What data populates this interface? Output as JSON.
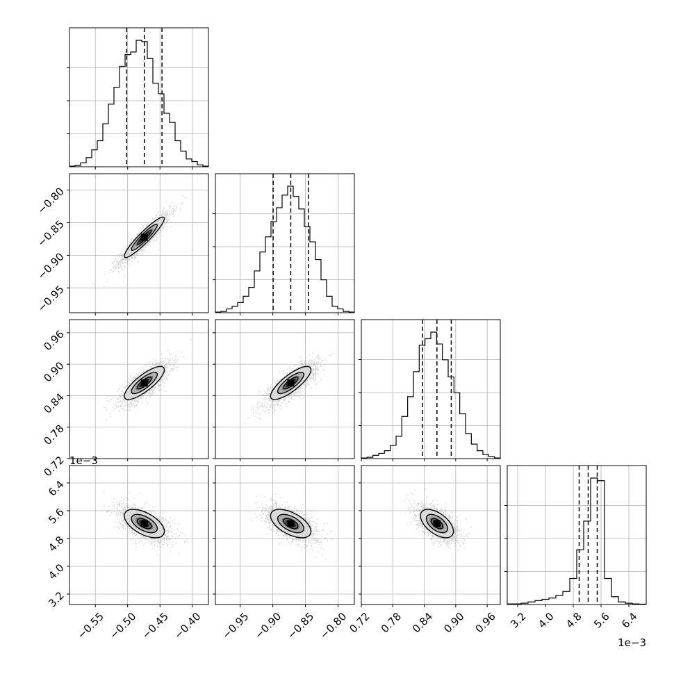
{
  "chart_data": {
    "type": "corner",
    "grid": true,
    "parameters": [
      {
        "range": [
          -0.59,
          -0.375
        ],
        "ticks": [
          -0.55,
          -0.5,
          -0.45,
          -0.4
        ],
        "tick_labels": [
          "−0.55",
          "−0.50",
          "−0.45",
          "−0.40"
        ],
        "offset_label": "",
        "quantiles": [
          -0.5015,
          -0.4742,
          -0.4469
        ],
        "hist": [
          0.005,
          0.01,
          0.03,
          0.07,
          0.13,
          0.2,
          0.33,
          0.48,
          0.61,
          0.77,
          0.86,
          0.88,
          0.97,
          0.96,
          0.83,
          0.64,
          0.56,
          0.41,
          0.34,
          0.2,
          0.12,
          0.06,
          0.04,
          0.015,
          0.005
        ]
      },
      {
        "range": [
          -0.988,
          -0.775
        ],
        "ticks": [
          -0.95,
          -0.9,
          -0.85,
          -0.8
        ],
        "tick_labels": [
          "−0.95",
          "−0.90",
          "−0.85",
          "−0.80"
        ],
        "offset_label": "",
        "quantiles": [
          -0.8995,
          -0.8725,
          -0.8455
        ],
        "hist": [
          0.005,
          0.01,
          0.03,
          0.05,
          0.08,
          0.13,
          0.2,
          0.33,
          0.48,
          0.6,
          0.72,
          0.83,
          0.93,
          1.0,
          0.92,
          0.82,
          0.68,
          0.56,
          0.42,
          0.26,
          0.13,
          0.05,
          0.03,
          0.01,
          0.005
        ]
      },
      {
        "range": [
          0.72,
          0.985
        ],
        "ticks": [
          0.72,
          0.78,
          0.84,
          0.9,
          0.96
        ],
        "tick_labels": [
          "0.72",
          "0.78",
          "0.84",
          "0.90",
          "0.96"
        ],
        "offset_label": "",
        "quantiles": [
          0.8369,
          0.8642,
          0.8915
        ],
        "hist": [
          0.005,
          0.01,
          0.025,
          0.04,
          0.06,
          0.1,
          0.17,
          0.32,
          0.47,
          0.66,
          0.86,
          0.91,
          0.96,
          0.87,
          0.75,
          0.62,
          0.5,
          0.34,
          0.19,
          0.11,
          0.06,
          0.03,
          0.015,
          0.005
        ]
      },
      {
        "range": [
          0.0029,
          0.0069
        ],
        "ticks": [
          0.0032,
          0.004,
          0.0048,
          0.0056,
          0.0064
        ],
        "tick_labels": [
          "3.2",
          "4.0",
          "4.8",
          "5.6",
          "6.4"
        ],
        "offset_label": "1e−3",
        "quantiles": [
          0.00497,
          0.00523,
          0.00549
        ],
        "hist": [
          0.005,
          0.005,
          0.01,
          0.02,
          0.03,
          0.04,
          0.05,
          0.07,
          0.1,
          0.2,
          0.42,
          0.64,
          0.97,
          0.95,
          0.2,
          0.06,
          0.02,
          0.01,
          0.005,
          0.003
        ]
      }
    ],
    "pairs": [
      {
        "row": 1,
        "col": 0,
        "center": [
          -0.4742,
          -0.8725
        ],
        "spread": [
          0.0182,
          0.0182
        ],
        "corr": 0.93,
        "contours": [
          0.6,
          1.1,
          1.7
        ]
      },
      {
        "row": 2,
        "col": 0,
        "center": [
          -0.4742,
          0.8642
        ],
        "spread": [
          0.0182,
          0.0185
        ],
        "corr": 0.8,
        "contours": [
          0.6,
          1.1,
          1.7
        ]
      },
      {
        "row": 2,
        "col": 1,
        "center": [
          -0.8725,
          0.8642
        ],
        "spread": [
          0.0182,
          0.0185
        ],
        "corr": 0.8,
        "contours": [
          0.6,
          1.1,
          1.7
        ]
      },
      {
        "row": 3,
        "col": 0,
        "center": [
          -0.4742,
          0.00523
        ],
        "spread": [
          0.0182,
          0.00024
        ],
        "corr": -0.55,
        "contours": [
          0.6,
          1.1,
          1.7
        ]
      },
      {
        "row": 3,
        "col": 1,
        "center": [
          -0.8725,
          0.00523
        ],
        "spread": [
          0.0182,
          0.00024
        ],
        "corr": -0.55,
        "contours": [
          0.6,
          1.1,
          1.7
        ]
      },
      {
        "row": 3,
        "col": 2,
        "center": [
          0.8642,
          0.00523
        ],
        "spread": [
          0.0185,
          0.00024
        ],
        "corr": -0.55,
        "contours": [
          0.6,
          1.1,
          1.7
        ]
      }
    ],
    "colors": {
      "line": "#000000",
      "grid": "#b0b0b0",
      "points": "#808080",
      "density": [
        "#d9d9d9",
        "#aaaaaa",
        "#6e6e6e",
        "#2e2e2e",
        "#000000"
      ]
    }
  }
}
